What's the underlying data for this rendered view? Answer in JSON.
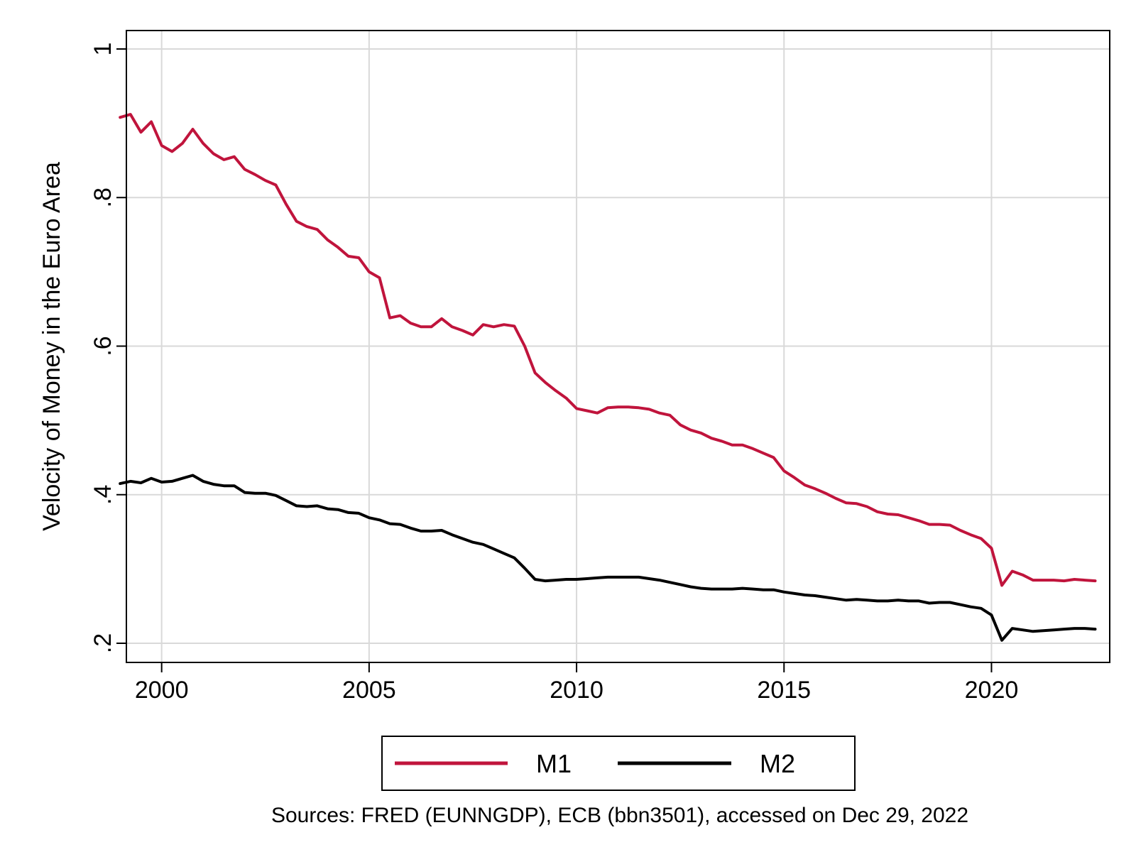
{
  "chart_data": {
    "type": "line",
    "title": "",
    "xlabel": "",
    "ylabel": "Velocity of Money in the Euro Area",
    "xlim": [
      1999.15,
      2022.85
    ],
    "ylim": [
      0.2,
      1.0
    ],
    "x_ticks": [
      2000,
      2005,
      2010,
      2015,
      2020
    ],
    "x_tick_labels": [
      "2000",
      "2005",
      "2010",
      "2015",
      "2020"
    ],
    "y_ticks": [
      0.2,
      0.4,
      0.6,
      0.8,
      1.0
    ],
    "y_tick_labels": [
      ".2",
      ".4",
      ".6",
      ".8",
      "1"
    ],
    "grid": true,
    "legend_position": "bottom",
    "note": "Sources: FRED (EUNNGDP), ECB (bbn3501), accessed on Dec 29, 2022",
    "series": [
      {
        "name": "M1",
        "color": "#c0143c",
        "x": [
          1999.0,
          1999.25,
          1999.5,
          1999.75,
          2000.0,
          2000.25,
          2000.5,
          2000.75,
          2001.0,
          2001.25,
          2001.5,
          2001.75,
          2002.0,
          2002.25,
          2002.5,
          2002.75,
          2003.0,
          2003.25,
          2003.5,
          2003.75,
          2004.0,
          2004.25,
          2004.5,
          2004.75,
          2005.0,
          2005.25,
          2005.5,
          2005.75,
          2006.0,
          2006.25,
          2006.5,
          2006.75,
          2007.0,
          2007.25,
          2007.5,
          2007.75,
          2008.0,
          2008.25,
          2008.5,
          2008.75,
          2009.0,
          2009.25,
          2009.5,
          2009.75,
          2010.0,
          2010.25,
          2010.5,
          2010.75,
          2011.0,
          2011.25,
          2011.5,
          2011.75,
          2012.0,
          2012.25,
          2012.5,
          2012.75,
          2013.0,
          2013.25,
          2013.5,
          2013.75,
          2014.0,
          2014.25,
          2014.5,
          2014.75,
          2015.0,
          2015.25,
          2015.5,
          2015.75,
          2016.0,
          2016.25,
          2016.5,
          2016.75,
          2017.0,
          2017.25,
          2017.5,
          2017.75,
          2018.0,
          2018.25,
          2018.5,
          2018.75,
          2019.0,
          2019.25,
          2019.5,
          2019.75,
          2020.0,
          2020.25,
          2020.5,
          2020.75,
          2021.0,
          2021.25,
          2021.5,
          2021.75,
          2022.0,
          2022.25,
          2022.5
        ],
        "values": [
          0.908,
          0.912,
          0.888,
          0.902,
          0.87,
          0.862,
          0.873,
          0.892,
          0.873,
          0.859,
          0.851,
          0.855,
          0.838,
          0.831,
          0.823,
          0.817,
          0.791,
          0.768,
          0.761,
          0.757,
          0.743,
          0.733,
          0.721,
          0.719,
          0.7,
          0.692,
          0.638,
          0.641,
          0.631,
          0.626,
          0.626,
          0.637,
          0.626,
          0.621,
          0.615,
          0.629,
          0.626,
          0.629,
          0.627,
          0.6,
          0.564,
          0.551,
          0.54,
          0.53,
          0.516,
          0.513,
          0.51,
          0.517,
          0.518,
          0.518,
          0.517,
          0.515,
          0.51,
          0.507,
          0.494,
          0.487,
          0.483,
          0.476,
          0.472,
          0.467,
          0.467,
          0.462,
          0.456,
          0.45,
          0.432,
          0.423,
          0.413,
          0.408,
          0.402,
          0.395,
          0.389,
          0.388,
          0.384,
          0.377,
          0.374,
          0.373,
          0.369,
          0.365,
          0.36,
          0.36,
          0.359,
          0.352,
          0.346,
          0.341,
          0.328,
          0.278,
          0.297,
          0.292,
          0.285,
          0.285,
          0.285,
          0.284,
          0.286,
          0.285,
          0.284
        ]
      },
      {
        "name": "M2",
        "color": "#000000",
        "x": [
          1999.0,
          1999.25,
          1999.5,
          1999.75,
          2000.0,
          2000.25,
          2000.5,
          2000.75,
          2001.0,
          2001.25,
          2001.5,
          2001.75,
          2002.0,
          2002.25,
          2002.5,
          2002.75,
          2003.0,
          2003.25,
          2003.5,
          2003.75,
          2004.0,
          2004.25,
          2004.5,
          2004.75,
          2005.0,
          2005.25,
          2005.5,
          2005.75,
          2006.0,
          2006.25,
          2006.5,
          2006.75,
          2007.0,
          2007.25,
          2007.5,
          2007.75,
          2008.0,
          2008.25,
          2008.5,
          2008.75,
          2009.0,
          2009.25,
          2009.5,
          2009.75,
          2010.0,
          2010.25,
          2010.5,
          2010.75,
          2011.0,
          2011.25,
          2011.5,
          2011.75,
          2012.0,
          2012.25,
          2012.5,
          2012.75,
          2013.0,
          2013.25,
          2013.5,
          2013.75,
          2014.0,
          2014.25,
          2014.5,
          2014.75,
          2015.0,
          2015.25,
          2015.5,
          2015.75,
          2016.0,
          2016.25,
          2016.5,
          2016.75,
          2017.0,
          2017.25,
          2017.5,
          2017.75,
          2018.0,
          2018.25,
          2018.5,
          2018.75,
          2019.0,
          2019.25,
          2019.5,
          2019.75,
          2020.0,
          2020.25,
          2020.5,
          2020.75,
          2021.0,
          2021.25,
          2021.5,
          2021.75,
          2022.0,
          2022.25,
          2022.5
        ],
        "values": [
          0.415,
          0.418,
          0.416,
          0.422,
          0.417,
          0.418,
          0.422,
          0.426,
          0.418,
          0.414,
          0.412,
          0.412,
          0.403,
          0.402,
          0.402,
          0.399,
          0.392,
          0.385,
          0.384,
          0.385,
          0.381,
          0.38,
          0.376,
          0.375,
          0.369,
          0.366,
          0.361,
          0.36,
          0.355,
          0.351,
          0.351,
          0.352,
          0.346,
          0.341,
          0.336,
          0.333,
          0.327,
          0.321,
          0.315,
          0.301,
          0.286,
          0.284,
          0.285,
          0.286,
          0.286,
          0.287,
          0.288,
          0.289,
          0.289,
          0.289,
          0.289,
          0.287,
          0.285,
          0.282,
          0.279,
          0.276,
          0.274,
          0.273,
          0.273,
          0.273,
          0.274,
          0.273,
          0.272,
          0.272,
          0.269,
          0.267,
          0.265,
          0.264,
          0.262,
          0.26,
          0.258,
          0.259,
          0.258,
          0.257,
          0.257,
          0.258,
          0.257,
          0.257,
          0.254,
          0.255,
          0.255,
          0.252,
          0.249,
          0.247,
          0.238,
          0.204,
          0.22,
          0.218,
          0.216,
          0.217,
          0.218,
          0.219,
          0.22,
          0.22,
          0.219
        ]
      }
    ]
  }
}
